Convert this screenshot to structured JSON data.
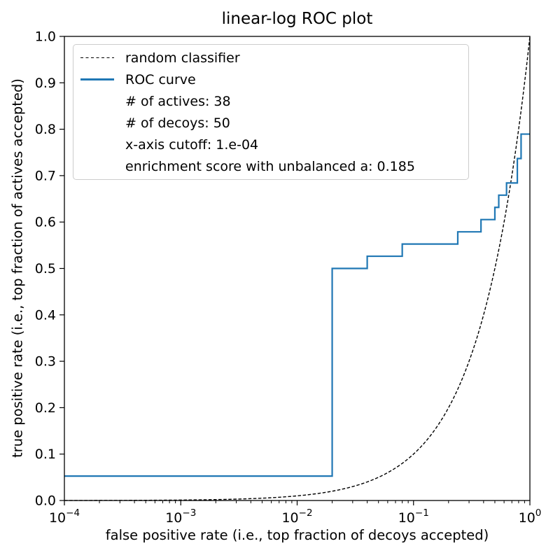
{
  "chart_data": {
    "type": "line",
    "title": "linear-log ROC plot",
    "xlabel": "false positive rate (i.e., top fraction of decoys accepted)",
    "ylabel": "true positive rate (i.e., top fraction of actives accepted)",
    "xscale": "log",
    "yscale": "linear",
    "xlim": [
      0.0001,
      1.0
    ],
    "ylim": [
      0.0,
      1.0
    ],
    "x_tick_exponents": [
      -4,
      -3,
      -2,
      -1,
      0
    ],
    "x_tick_labels": [
      "10⁻⁴",
      "10⁻³",
      "10⁻²",
      "10⁻¹",
      "10⁰"
    ],
    "y_ticks": [
      0.0,
      0.1,
      0.2,
      0.3,
      0.4,
      0.5,
      0.6,
      0.7,
      0.8,
      0.9,
      1.0
    ],
    "grid": false,
    "legend_position": "upper left",
    "stats": {
      "n_actives": 38,
      "n_decoys": 50,
      "x_axis_cutoff": "1.e-04",
      "enrichment_score_unbalanced_a": 0.185
    },
    "series": [
      {
        "name": "random classifier",
        "style": "dashed",
        "color": "#000000",
        "identity_line": true
      },
      {
        "name": "ROC curve",
        "style": "solid",
        "color": "#1f77b4",
        "points": [
          [
            0.0001,
            0.0526
          ],
          [
            0.02,
            0.0526
          ],
          [
            0.02,
            0.5
          ],
          [
            0.04,
            0.5
          ],
          [
            0.04,
            0.5263
          ],
          [
            0.08,
            0.5263
          ],
          [
            0.08,
            0.5526
          ],
          [
            0.24,
            0.5526
          ],
          [
            0.24,
            0.5789
          ],
          [
            0.38,
            0.5789
          ],
          [
            0.38,
            0.6053
          ],
          [
            0.5,
            0.6053
          ],
          [
            0.5,
            0.6316
          ],
          [
            0.54,
            0.6316
          ],
          [
            0.54,
            0.6579
          ],
          [
            0.63,
            0.6579
          ],
          [
            0.63,
            0.6842
          ],
          [
            0.78,
            0.6842
          ],
          [
            0.78,
            0.7368
          ],
          [
            0.84,
            0.7368
          ],
          [
            0.84,
            0.7895
          ],
          [
            1.0,
            0.7895
          ]
        ]
      }
    ]
  },
  "legend": {
    "items": [
      {
        "label": "random classifier"
      },
      {
        "label": "ROC curve"
      },
      {
        "label": "# of actives: 38"
      },
      {
        "label": "# of decoys: 50"
      },
      {
        "label": "x-axis cutoff: 1.e-04"
      },
      {
        "label": "enrichment score with unbalanced a: 0.185"
      }
    ]
  }
}
